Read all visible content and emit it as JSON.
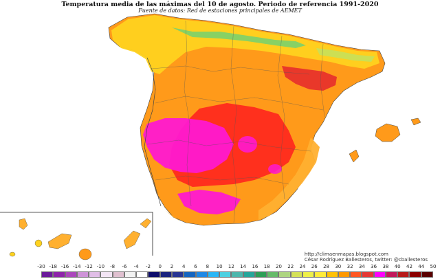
{
  "header": {
    "title": "Temperatura media de las máximas del 10 de agosto. Periodo de referencia 1991-2020",
    "subtitle": "Fuente de datos: Red de estaciones principales de AEMET"
  },
  "credits": {
    "line1": "http://climaenmapas.blogspot.com",
    "line2": "César Rodríguez Ballesteros, twitter: @cballesteros"
  },
  "legend": {
    "labels": [
      "-30",
      "-18",
      "-16",
      "-14",
      "-12",
      "-10",
      "-8",
      "-6",
      "-4",
      "-2",
      "0",
      "2",
      "4",
      "6",
      "8",
      "10",
      "12",
      "14",
      "16",
      "18",
      "20",
      "22",
      "24",
      "26",
      "28",
      "30",
      "32",
      "34",
      "36",
      "38",
      "40",
      "42",
      "44",
      "50"
    ],
    "colors": [
      "#6a1b9a",
      "#8e24aa",
      "#ab47bc",
      "#ce93d8",
      "#e1bee7",
      "#f3e5f5",
      "#e0c0d0",
      "#f2f2f2",
      "#ffffff",
      "#0d0d6b",
      "#1a237e",
      "#283593",
      "#1565c0",
      "#1e88e5",
      "#29b6f6",
      "#4dd0e1",
      "#4db6ac",
      "#26a69a",
      "#2e9e57",
      "#66bb6a",
      "#aed581",
      "#d4e157",
      "#eef04a",
      "#ffeb3b",
      "#ffc107",
      "#ff9800",
      "#ff5722",
      "#e53935",
      "#ff00ff",
      "#c2185b",
      "#b71c1c",
      "#8b0000",
      "#5a0000"
    ]
  }
}
